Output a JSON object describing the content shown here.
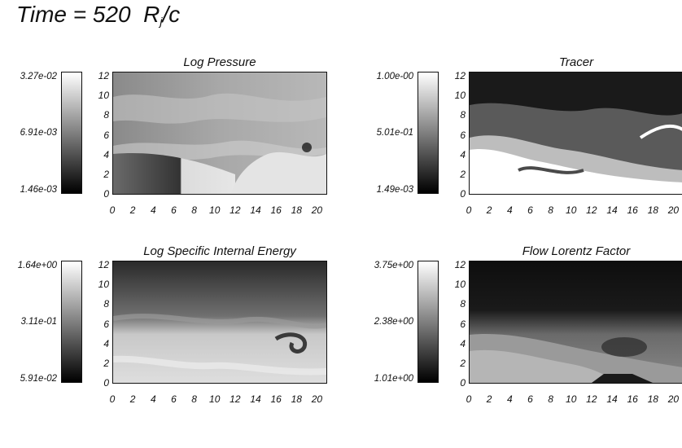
{
  "header": {
    "time_label": "Time = ",
    "time_value": "520",
    "unit_r": "R",
    "unit_sub": "j",
    "unit_c": "/c"
  },
  "axes": {
    "x_ticks": [
      "0",
      "2",
      "4",
      "6",
      "8",
      "10",
      "12",
      "14",
      "16",
      "18",
      "20"
    ],
    "y_ticks": [
      "0",
      "2",
      "4",
      "6",
      "8",
      "10",
      "12"
    ]
  },
  "chart_data": [
    {
      "type": "heatmap",
      "title": "Log Pressure",
      "xlim": [
        0,
        21
      ],
      "ylim": [
        0,
        12.5
      ],
      "colorbar": {
        "max": "3.27e-02",
        "mid": "6.91e-03",
        "min": "1.46e-03"
      }
    },
    {
      "type": "heatmap",
      "title": "Tracer",
      "xlim": [
        0,
        21
      ],
      "ylim": [
        0,
        12.5
      ],
      "colorbar": {
        "max": "1.00e-00",
        "mid": "5.01e-01",
        "min": "1.49e-03"
      }
    },
    {
      "type": "heatmap",
      "title": "Log Specific Internal Energy",
      "xlim": [
        0,
        21
      ],
      "ylim": [
        0,
        12.5
      ],
      "colorbar": {
        "max": "1.64e+00",
        "mid": "3.11e-01",
        "min": "5.91e-02"
      }
    },
    {
      "type": "heatmap",
      "title": "Flow Lorentz Factor",
      "xlim": [
        0,
        21
      ],
      "ylim": [
        0,
        12.5
      ],
      "colorbar": {
        "max": "3.75e+00",
        "mid": "2.38e+00",
        "min": "1.01e+00"
      }
    }
  ]
}
